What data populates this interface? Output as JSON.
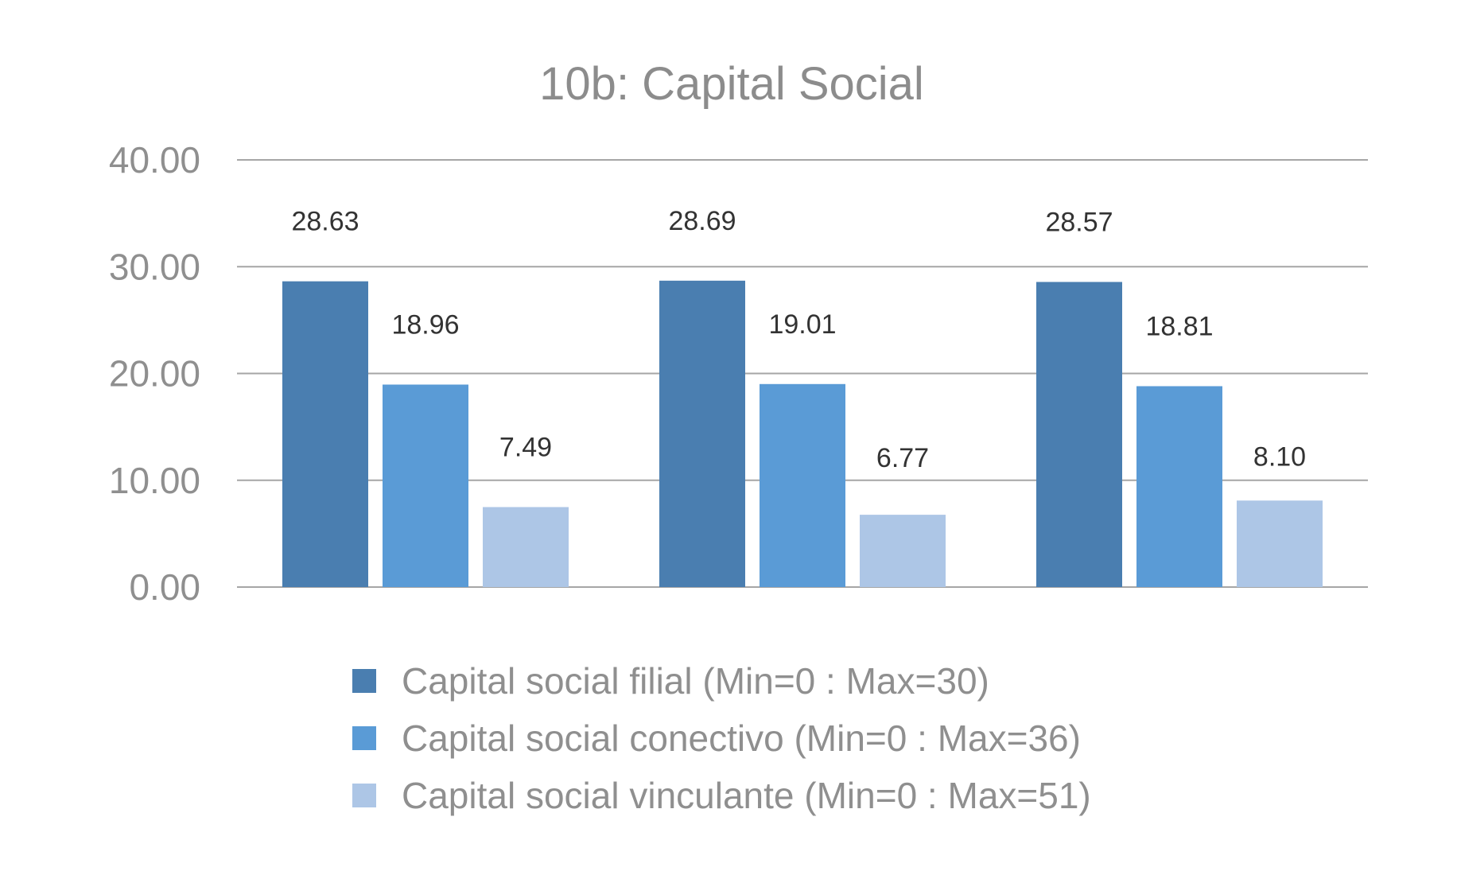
{
  "chart_data": {
    "type": "bar",
    "title": "10b: Capital Social",
    "xlabel": "",
    "ylabel": "",
    "ylim": [
      0,
      40
    ],
    "yticks": [
      "0.00",
      "10.00",
      "20.00",
      "30.00",
      "40.00"
    ],
    "grid": true,
    "legend_position": "bottom",
    "categories": [
      "",
      "",
      ""
    ],
    "series": [
      {
        "name": "Capital social filial (Min=0 : Max=30)",
        "color": "#4a7eb0",
        "values": [
          28.63,
          28.69,
          28.57
        ],
        "labels": [
          "28.63",
          "28.69",
          "28.57"
        ]
      },
      {
        "name": "Capital social conectivo (Min=0 : Max=36)",
        "color": "#5a9bd6",
        "values": [
          18.96,
          19.01,
          18.81
        ],
        "labels": [
          "18.96",
          "19.01",
          "18.81"
        ]
      },
      {
        "name": "Capital social vinculante (Min=0 : Max=51)",
        "color": "#adc6e6",
        "values": [
          7.49,
          6.77,
          8.1
        ],
        "labels": [
          "7.49",
          "6.77",
          "8.10"
        ]
      }
    ]
  }
}
